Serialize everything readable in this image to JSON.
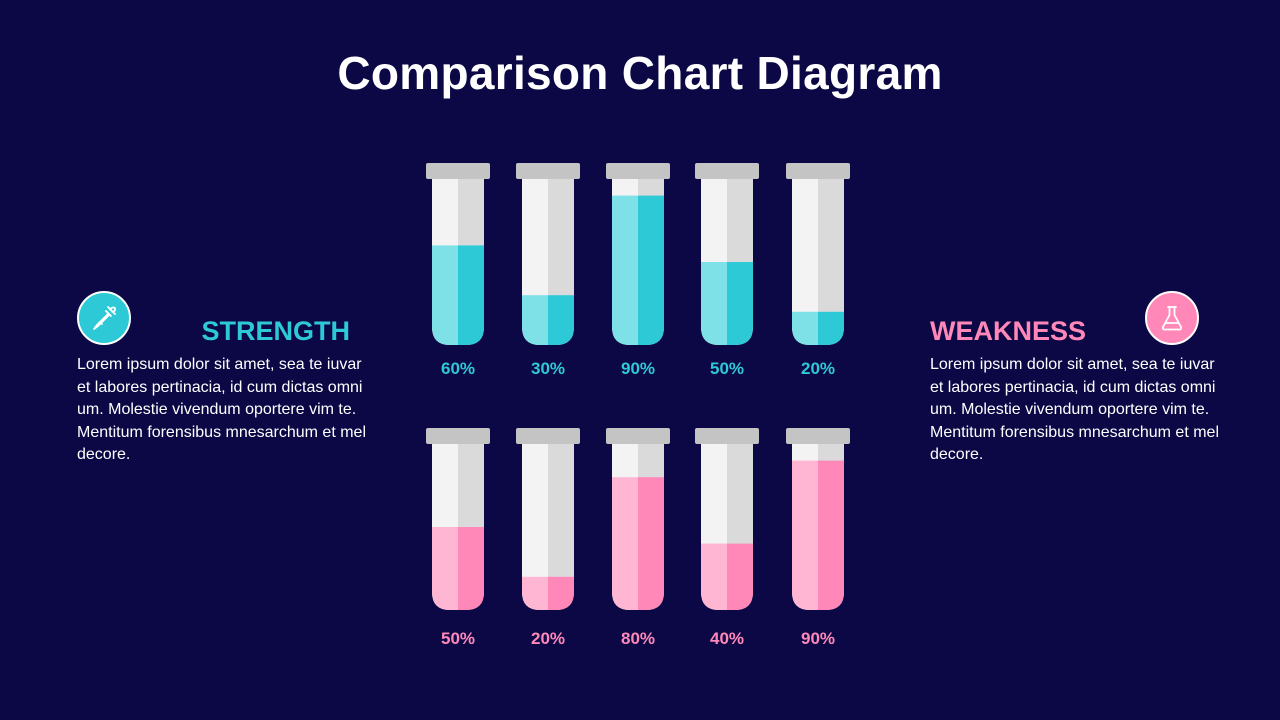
{
  "title": "Comparison Chart Diagram",
  "colors": {
    "background": "#0b0845",
    "cyan": "#2ec9d6",
    "cyan_light": "#7fe1e8",
    "pink": "#ff88b9",
    "pink_light": "#ffb6d3",
    "tube_light": "#f3f3f3",
    "tube_dark": "#dadada",
    "cap": "#c4c4c4"
  },
  "strength": {
    "heading": "STRENGTH",
    "icon": "dropper-icon",
    "text": "Lorem ipsum dolor sit amet, sea te iuvaret labores pertinacia, id cum dictas omnium. Molestie vivendum oportere vim te. Mentitum forensibus mnesarchum et mel decore."
  },
  "weakness": {
    "heading": "WEAKNESS",
    "icon": "flask-icon",
    "text": "Lorem ipsum dolor sit amet, sea te iuvaret labores pertinacia, id cum dictas omnium. Molestie vivendum oportere vim te. Mentitum forensibus mnesarchum et mel decore."
  },
  "chart_data": [
    {
      "type": "bar",
      "series": [
        {
          "values": [
            60,
            30,
            90,
            50,
            20
          ]
        }
      ],
      "labels": [
        "60%",
        "30%",
        "90%",
        "50%",
        "20%"
      ],
      "ylim": [
        0,
        100
      ],
      "color": "#2ec9d6"
    },
    {
      "type": "bar",
      "series": [
        {
          "values": [
            50,
            20,
            80,
            40,
            90
          ]
        }
      ],
      "labels": [
        "50%",
        "20%",
        "80%",
        "40%",
        "90%"
      ],
      "ylim": [
        0,
        100
      ],
      "color": "#ff88b9"
    }
  ]
}
